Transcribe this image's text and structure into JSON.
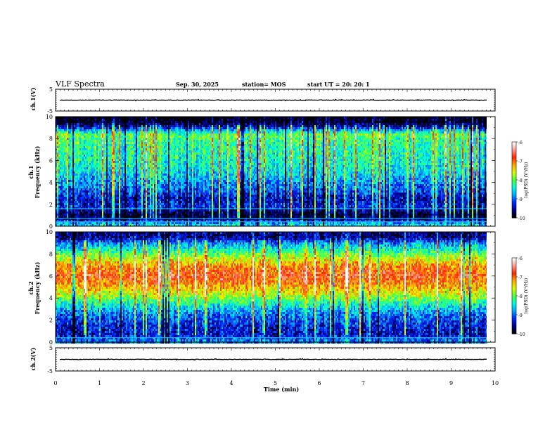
{
  "header": {
    "title": "VLF Spectra",
    "date": "Sep. 30, 2025",
    "station": "station= MOS",
    "start": "start  UT  =   20: 20: 1"
  },
  "colorbar": {
    "label": "log(PSD) (V²/Hz)",
    "ticks": [
      "-6",
      "-7",
      "-8",
      "-9",
      "-10"
    ],
    "colors": [
      "#ffffff",
      "#ff0000",
      "#ffaa00",
      "#ffff00",
      "#00ff00",
      "#00ffff",
      "#0066ff",
      "#0000cc",
      "#000000"
    ]
  },
  "chart_data": [
    {
      "type": "line",
      "name": "ch1-waveform",
      "ylabel": "ch.1(V)",
      "ylim": [
        -5,
        5
      ],
      "y_ticks": [
        "5",
        "-5"
      ],
      "x_range": [
        0,
        10
      ],
      "y_baseline": 0
    },
    {
      "type": "heatmap",
      "name": "ch1-spectrogram",
      "ylabel_top": "ch.1",
      "ylabel": "Frequency (kHz)",
      "ylim": [
        0,
        10
      ],
      "y_ticks": [
        "0",
        "2",
        "4",
        "6",
        "8",
        "10"
      ],
      "x_range": [
        0,
        9.8
      ],
      "color_scale": [
        -10,
        -6
      ],
      "profile": [
        {
          "f": 0.3,
          "v": -8.6
        },
        {
          "f": 0.7,
          "v": -9.6
        },
        {
          "f": 1.2,
          "v": -9.9
        },
        {
          "f": 1.8,
          "v": -9.2
        },
        {
          "f": 2.6,
          "v": -9.4
        },
        {
          "f": 3.5,
          "v": -9.0
        },
        {
          "f": 4.5,
          "v": -8.7
        },
        {
          "f": 5.5,
          "v": -8.4
        },
        {
          "f": 6.5,
          "v": -8.3
        },
        {
          "f": 7.5,
          "v": -8.2
        },
        {
          "f": 8.5,
          "v": -8.0
        },
        {
          "f": 9.2,
          "v": -9.5
        },
        {
          "f": 9.7,
          "v": -10.0
        }
      ],
      "lines_khz": [
        0.4,
        0.7,
        1.6
      ]
    },
    {
      "type": "heatmap",
      "name": "ch2-spectrogram",
      "ylabel_top": "ch.2",
      "ylabel": "Frequency (kHz)",
      "ylim": [
        0,
        10
      ],
      "y_ticks": [
        "0",
        "2",
        "4",
        "6",
        "8",
        "10"
      ],
      "x_range": [
        0,
        9.8
      ],
      "color_scale": [
        -10,
        -6
      ],
      "profile": [
        {
          "f": 0.3,
          "v": -9.0
        },
        {
          "f": 0.8,
          "v": -9.4
        },
        {
          "f": 1.5,
          "v": -9.3
        },
        {
          "f": 2.5,
          "v": -9.0
        },
        {
          "f": 3.5,
          "v": -8.4
        },
        {
          "f": 4.5,
          "v": -7.6
        },
        {
          "f": 5.5,
          "v": -7.0
        },
        {
          "f": 6.2,
          "v": -6.8
        },
        {
          "f": 7.0,
          "v": -7.1
        },
        {
          "f": 8.0,
          "v": -7.9
        },
        {
          "f": 9.0,
          "v": -8.8
        },
        {
          "f": 9.6,
          "v": -9.6
        }
      ],
      "lines_khz": [
        0.4
      ]
    },
    {
      "type": "line",
      "name": "ch2-waveform",
      "ylabel": "ch.2(V)",
      "ylim": [
        -5,
        5
      ],
      "y_ticks": [
        "5",
        "-5"
      ],
      "x_range": [
        0,
        10
      ],
      "y_baseline": 0
    }
  ],
  "x_axis": {
    "label": "Time  (min)",
    "range": [
      0,
      10
    ],
    "ticks": [
      "0",
      "1",
      "2",
      "3",
      "4",
      "5",
      "6",
      "7",
      "8",
      "9",
      "10"
    ]
  }
}
